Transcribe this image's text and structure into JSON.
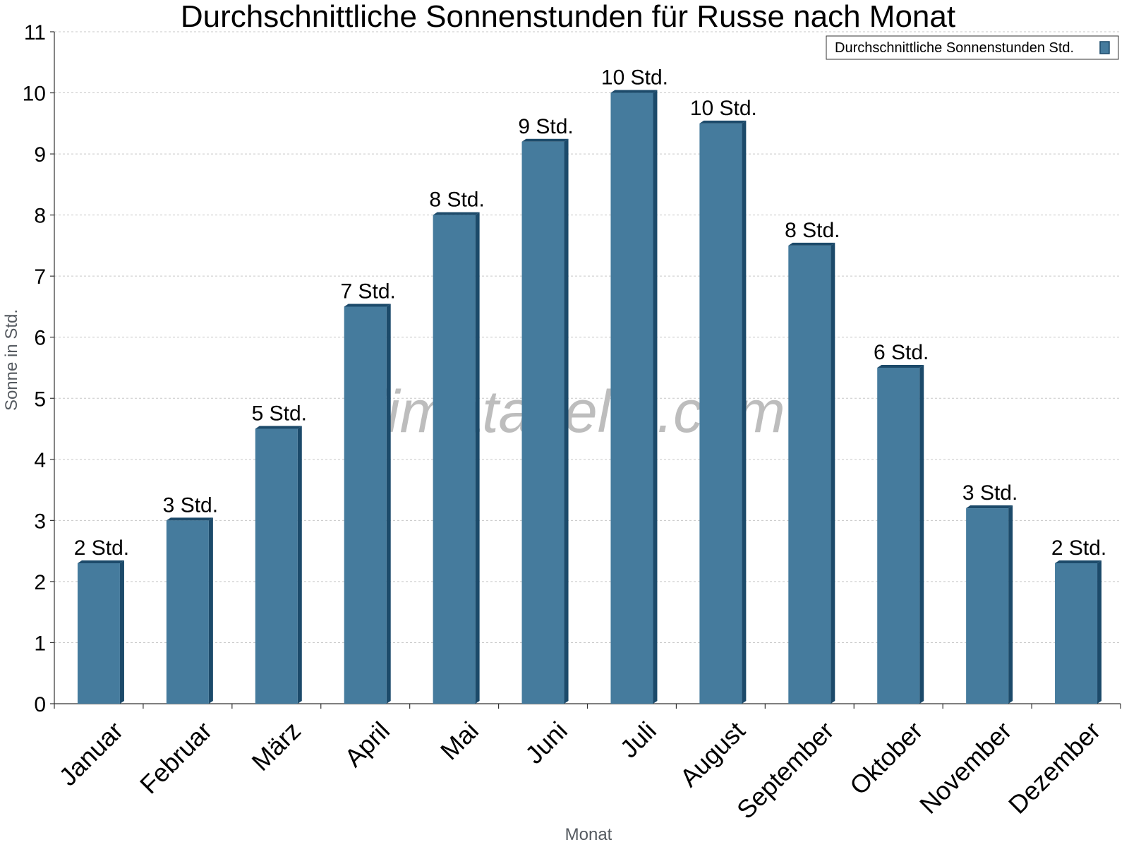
{
  "chart_data": {
    "type": "bar",
    "title": "Durchschnittliche Sonnenstunden für Russe nach Monat",
    "xlabel": "Monat",
    "ylabel": "Sonne in Std.",
    "ylim": [
      0,
      11
    ],
    "yticks": [
      0,
      1,
      2,
      3,
      4,
      5,
      6,
      7,
      8,
      9,
      10,
      11
    ],
    "grid": true,
    "legend_position": "top-right",
    "categories": [
      "Januar",
      "Februar",
      "März",
      "April",
      "Mai",
      "Juni",
      "Juli",
      "August",
      "September",
      "Oktober",
      "November",
      "Dezember"
    ],
    "series": [
      {
        "name": "Durchschnittliche Sonnenstunden Std.",
        "values": [
          2.3,
          3.0,
          4.5,
          6.5,
          8.0,
          9.2,
          10.0,
          9.5,
          7.5,
          5.5,
          3.2,
          2.3
        ],
        "labels": [
          "2 Std.",
          "3 Std.",
          "5 Std.",
          "7 Std.",
          "8 Std.",
          "9 Std.",
          "10 Std.",
          "10 Std.",
          "8 Std.",
          "6 Std.",
          "3 Std.",
          "2 Std."
        ],
        "color": "#457b9d",
        "edge_color": "#1c4a6a"
      }
    ]
  },
  "watermark": "klimatabelle.com"
}
